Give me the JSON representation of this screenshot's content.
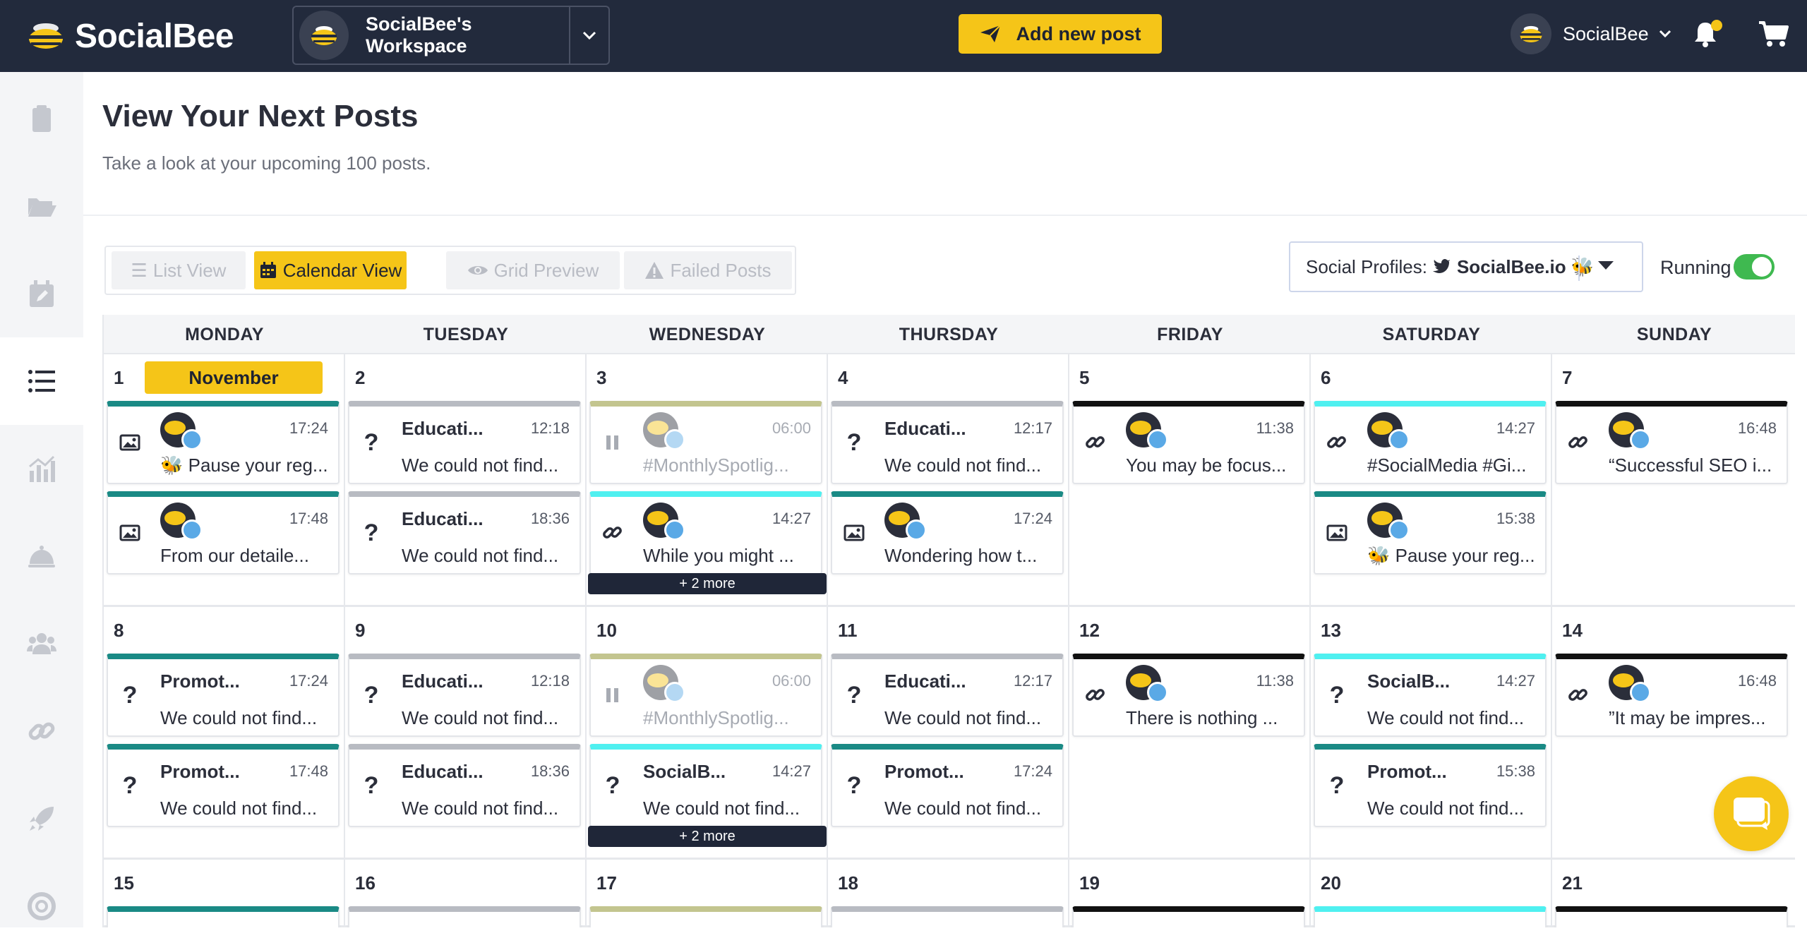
{
  "app": {
    "logo_text": "SocialBee",
    "workspace_name": "SocialBee's Workspace",
    "add_post_label": "Add new post",
    "user_name": "SocialBee"
  },
  "colors": {
    "accent": "#f5c518",
    "topbar": "#222a3c",
    "running_toggle": "#3fb950"
  },
  "sidebar": {
    "items": [
      {
        "icon": "clipboard-icon",
        "active": false
      },
      {
        "icon": "folder-open-icon",
        "active": false
      },
      {
        "icon": "calendar-edit-icon",
        "active": false
      },
      {
        "icon": "list-icon",
        "active": true
      },
      {
        "icon": "analytics-icon",
        "active": false
      },
      {
        "icon": "concierge-bell-icon",
        "active": false
      },
      {
        "icon": "users-icon",
        "active": false
      },
      {
        "icon": "link-icon",
        "active": false
      },
      {
        "icon": "rocket-icon",
        "active": false
      },
      {
        "icon": "help-ring-icon",
        "active": false
      }
    ]
  },
  "header": {
    "title": "View Your Next Posts",
    "subtitle": "Take a look at your upcoming 100 posts."
  },
  "view_tabs": [
    {
      "label": "List View",
      "icon": "list-icon",
      "active": false
    },
    {
      "label": "Calendar View",
      "icon": "calendar-icon",
      "active": true
    },
    {
      "label": "Grid Preview",
      "icon": "eye-icon",
      "active": false
    },
    {
      "label": "Failed Posts",
      "icon": "warning-icon",
      "active": false
    }
  ],
  "profiles": {
    "label": "Social Profiles:",
    "selected": "SocialBee.io 🐝",
    "running_label": "Running",
    "running": true
  },
  "calendar": {
    "weekdays": [
      "MONDAY",
      "TUESDAY",
      "WEDNESDAY",
      "THURSDAY",
      "FRIDAY",
      "SATURDAY",
      "SUNDAY"
    ],
    "month_label": "November",
    "more_label": "+ 2 more",
    "weeks": [
      [
        {
          "day": "1",
          "posts": [
            {
              "type": "image",
              "title": "",
              "time": "17:24",
              "text": "🐝 Pause your reg...",
              "color": "#1a8a85",
              "avatar": true
            },
            {
              "type": "image",
              "title": "",
              "time": "17:48",
              "text": "From our detaile...",
              "color": "#1a8a85",
              "avatar": true
            }
          ]
        },
        {
          "day": "2",
          "posts": [
            {
              "type": "question",
              "title": "Educati...",
              "time": "12:18",
              "text": "We could not find...",
              "color": "#b8bbc2",
              "avatar": false
            },
            {
              "type": "question",
              "title": "Educati...",
              "time": "18:36",
              "text": "We could not find...",
              "color": "#b8bbc2",
              "avatar": false
            }
          ]
        },
        {
          "day": "3",
          "more": true,
          "posts": [
            {
              "type": "paused",
              "title": "",
              "time": "06:00",
              "text": "#MonthlySpotlig...",
              "color": "#c3c58f",
              "avatar": true,
              "paused": true
            },
            {
              "type": "link",
              "title": "",
              "time": "14:27",
              "text": "While you might ...",
              "color": "#4ff0f0",
              "avatar": true
            }
          ]
        },
        {
          "day": "4",
          "posts": [
            {
              "type": "question",
              "title": "Educati...",
              "time": "12:17",
              "text": "We could not find...",
              "color": "#b8bbc2",
              "avatar": false
            },
            {
              "type": "image",
              "title": "",
              "time": "17:24",
              "text": "Wondering how t...",
              "color": "#1a8a85",
              "avatar": true
            }
          ]
        },
        {
          "day": "5",
          "posts": [
            {
              "type": "link",
              "title": "",
              "time": "11:38",
              "text": "You may be focus...",
              "color": "#111111",
              "avatar": true
            }
          ]
        },
        {
          "day": "6",
          "posts": [
            {
              "type": "link",
              "title": "",
              "time": "14:27",
              "text": "#SocialMedia #Gi...",
              "color": "#4ff0f0",
              "avatar": true
            },
            {
              "type": "image",
              "title": "",
              "time": "15:38",
              "text": "🐝 Pause your reg...",
              "color": "#1a8a85",
              "avatar": true
            }
          ]
        },
        {
          "day": "7",
          "posts": [
            {
              "type": "link",
              "title": "",
              "time": "16:48",
              "text": "“Successful SEO i...",
              "color": "#111111",
              "avatar": true
            }
          ]
        }
      ],
      [
        {
          "day": "8",
          "posts": [
            {
              "type": "question",
              "title": "Promot...",
              "time": "17:24",
              "text": "We could not find...",
              "color": "#1a8a85",
              "avatar": false
            },
            {
              "type": "question",
              "title": "Promot...",
              "time": "17:48",
              "text": "We could not find...",
              "color": "#1a8a85",
              "avatar": false
            }
          ]
        },
        {
          "day": "9",
          "posts": [
            {
              "type": "question",
              "title": "Educati...",
              "time": "12:18",
              "text": "We could not find...",
              "color": "#b8bbc2",
              "avatar": false
            },
            {
              "type": "question",
              "title": "Educati...",
              "time": "18:36",
              "text": "We could not find...",
              "color": "#b8bbc2",
              "avatar": false
            }
          ]
        },
        {
          "day": "10",
          "more": true,
          "posts": [
            {
              "type": "paused",
              "title": "",
              "time": "06:00",
              "text": "#MonthlySpotlig...",
              "color": "#c3c58f",
              "avatar": true,
              "paused": true
            },
            {
              "type": "question",
              "title": "SocialB...",
              "time": "14:27",
              "text": "We could not find...",
              "color": "#4ff0f0",
              "avatar": false
            }
          ]
        },
        {
          "day": "11",
          "posts": [
            {
              "type": "question",
              "title": "Educati...",
              "time": "12:17",
              "text": "We could not find...",
              "color": "#b8bbc2",
              "avatar": false
            },
            {
              "type": "question",
              "title": "Promot...",
              "time": "17:24",
              "text": "We could not find...",
              "color": "#1a8a85",
              "avatar": false
            }
          ]
        },
        {
          "day": "12",
          "posts": [
            {
              "type": "link",
              "title": "",
              "time": "11:38",
              "text": "There is nothing ...",
              "color": "#111111",
              "avatar": true
            }
          ]
        },
        {
          "day": "13",
          "posts": [
            {
              "type": "question",
              "title": "SocialB...",
              "time": "14:27",
              "text": "We could not find...",
              "color": "#4ff0f0",
              "avatar": false
            },
            {
              "type": "question",
              "title": "Promot...",
              "time": "15:38",
              "text": "We could not find...",
              "color": "#1a8a85",
              "avatar": false
            }
          ]
        },
        {
          "day": "14",
          "posts": [
            {
              "type": "link",
              "title": "",
              "time": "16:48",
              "text": "”It may be impres...",
              "color": "#111111",
              "avatar": true
            }
          ]
        }
      ],
      [
        {
          "day": "15",
          "posts": [
            {
              "type": "stub",
              "color": "#1a8a85"
            }
          ]
        },
        {
          "day": "16",
          "posts": [
            {
              "type": "stub",
              "color": "#b8bbc2"
            }
          ]
        },
        {
          "day": "17",
          "posts": [
            {
              "type": "stub",
              "color": "#c3c58f"
            }
          ]
        },
        {
          "day": "18",
          "posts": [
            {
              "type": "stub",
              "color": "#b8bbc2"
            }
          ]
        },
        {
          "day": "19",
          "posts": [
            {
              "type": "stub",
              "color": "#111111"
            }
          ]
        },
        {
          "day": "20",
          "posts": [
            {
              "type": "stub",
              "color": "#4ff0f0"
            }
          ]
        },
        {
          "day": "21",
          "posts": [
            {
              "type": "stub",
              "color": "#111111"
            }
          ]
        }
      ]
    ]
  }
}
